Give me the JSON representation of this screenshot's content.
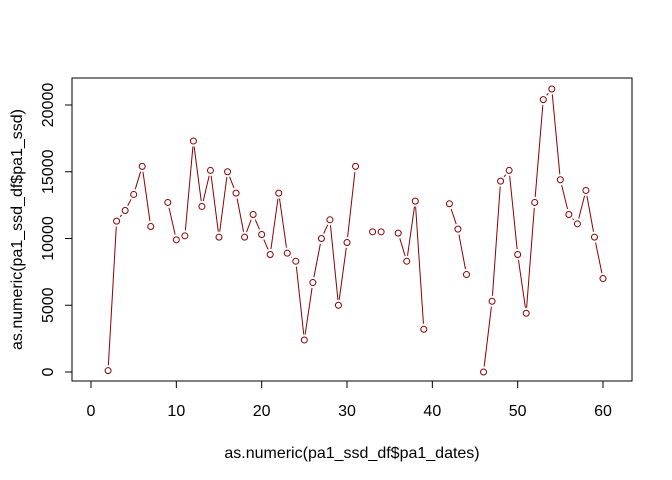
{
  "chart_data": {
    "type": "line",
    "title": "",
    "xlabel": "as.numeric(pa1_ssd_df$pa1_dates)",
    "ylabel": "as.numeric(pa1_ssd_df$pa1_ssd)",
    "xlim": [
      0,
      60
    ],
    "ylim": [
      0,
      20000
    ],
    "x_ticks": [
      0,
      10,
      20,
      30,
      40,
      50,
      60
    ],
    "y_ticks": [
      0,
      5000,
      10000,
      15000,
      20000
    ],
    "grid": false,
    "legend": "none",
    "line_color": "#8b0000",
    "point_style": "open-circle",
    "series": [
      {
        "x": [
          1,
          2,
          3,
          4,
          5,
          6,
          7,
          8,
          9,
          10,
          11,
          12,
          13,
          14,
          15,
          16,
          17,
          18,
          19,
          20,
          21,
          22,
          23,
          24,
          25,
          26,
          27,
          28,
          29,
          30,
          31,
          32,
          33,
          34,
          35,
          36,
          37,
          38,
          39,
          40,
          41,
          42,
          43,
          44,
          45,
          46,
          47,
          48,
          49,
          50,
          51,
          52,
          53,
          54,
          55,
          56,
          57,
          58,
          59,
          60
        ],
        "values": [
          null,
          100,
          11300,
          12100,
          13300,
          15400,
          10900,
          null,
          12700,
          9900,
          10200,
          17300,
          12400,
          15100,
          10100,
          15000,
          13400,
          10100,
          11800,
          10300,
          8800,
          13400,
          8900,
          8300,
          2400,
          6700,
          10000,
          11400,
          5000,
          9700,
          15400,
          null,
          10500,
          10500,
          null,
          10400,
          8300,
          12800,
          3200,
          null,
          null,
          12600,
          10700,
          7300,
          null,
          0,
          5300,
          14300,
          15100,
          8800,
          4400,
          12700,
          20400,
          21200,
          14400,
          11800,
          11100,
          13600,
          10100,
          7000
        ]
      }
    ]
  }
}
